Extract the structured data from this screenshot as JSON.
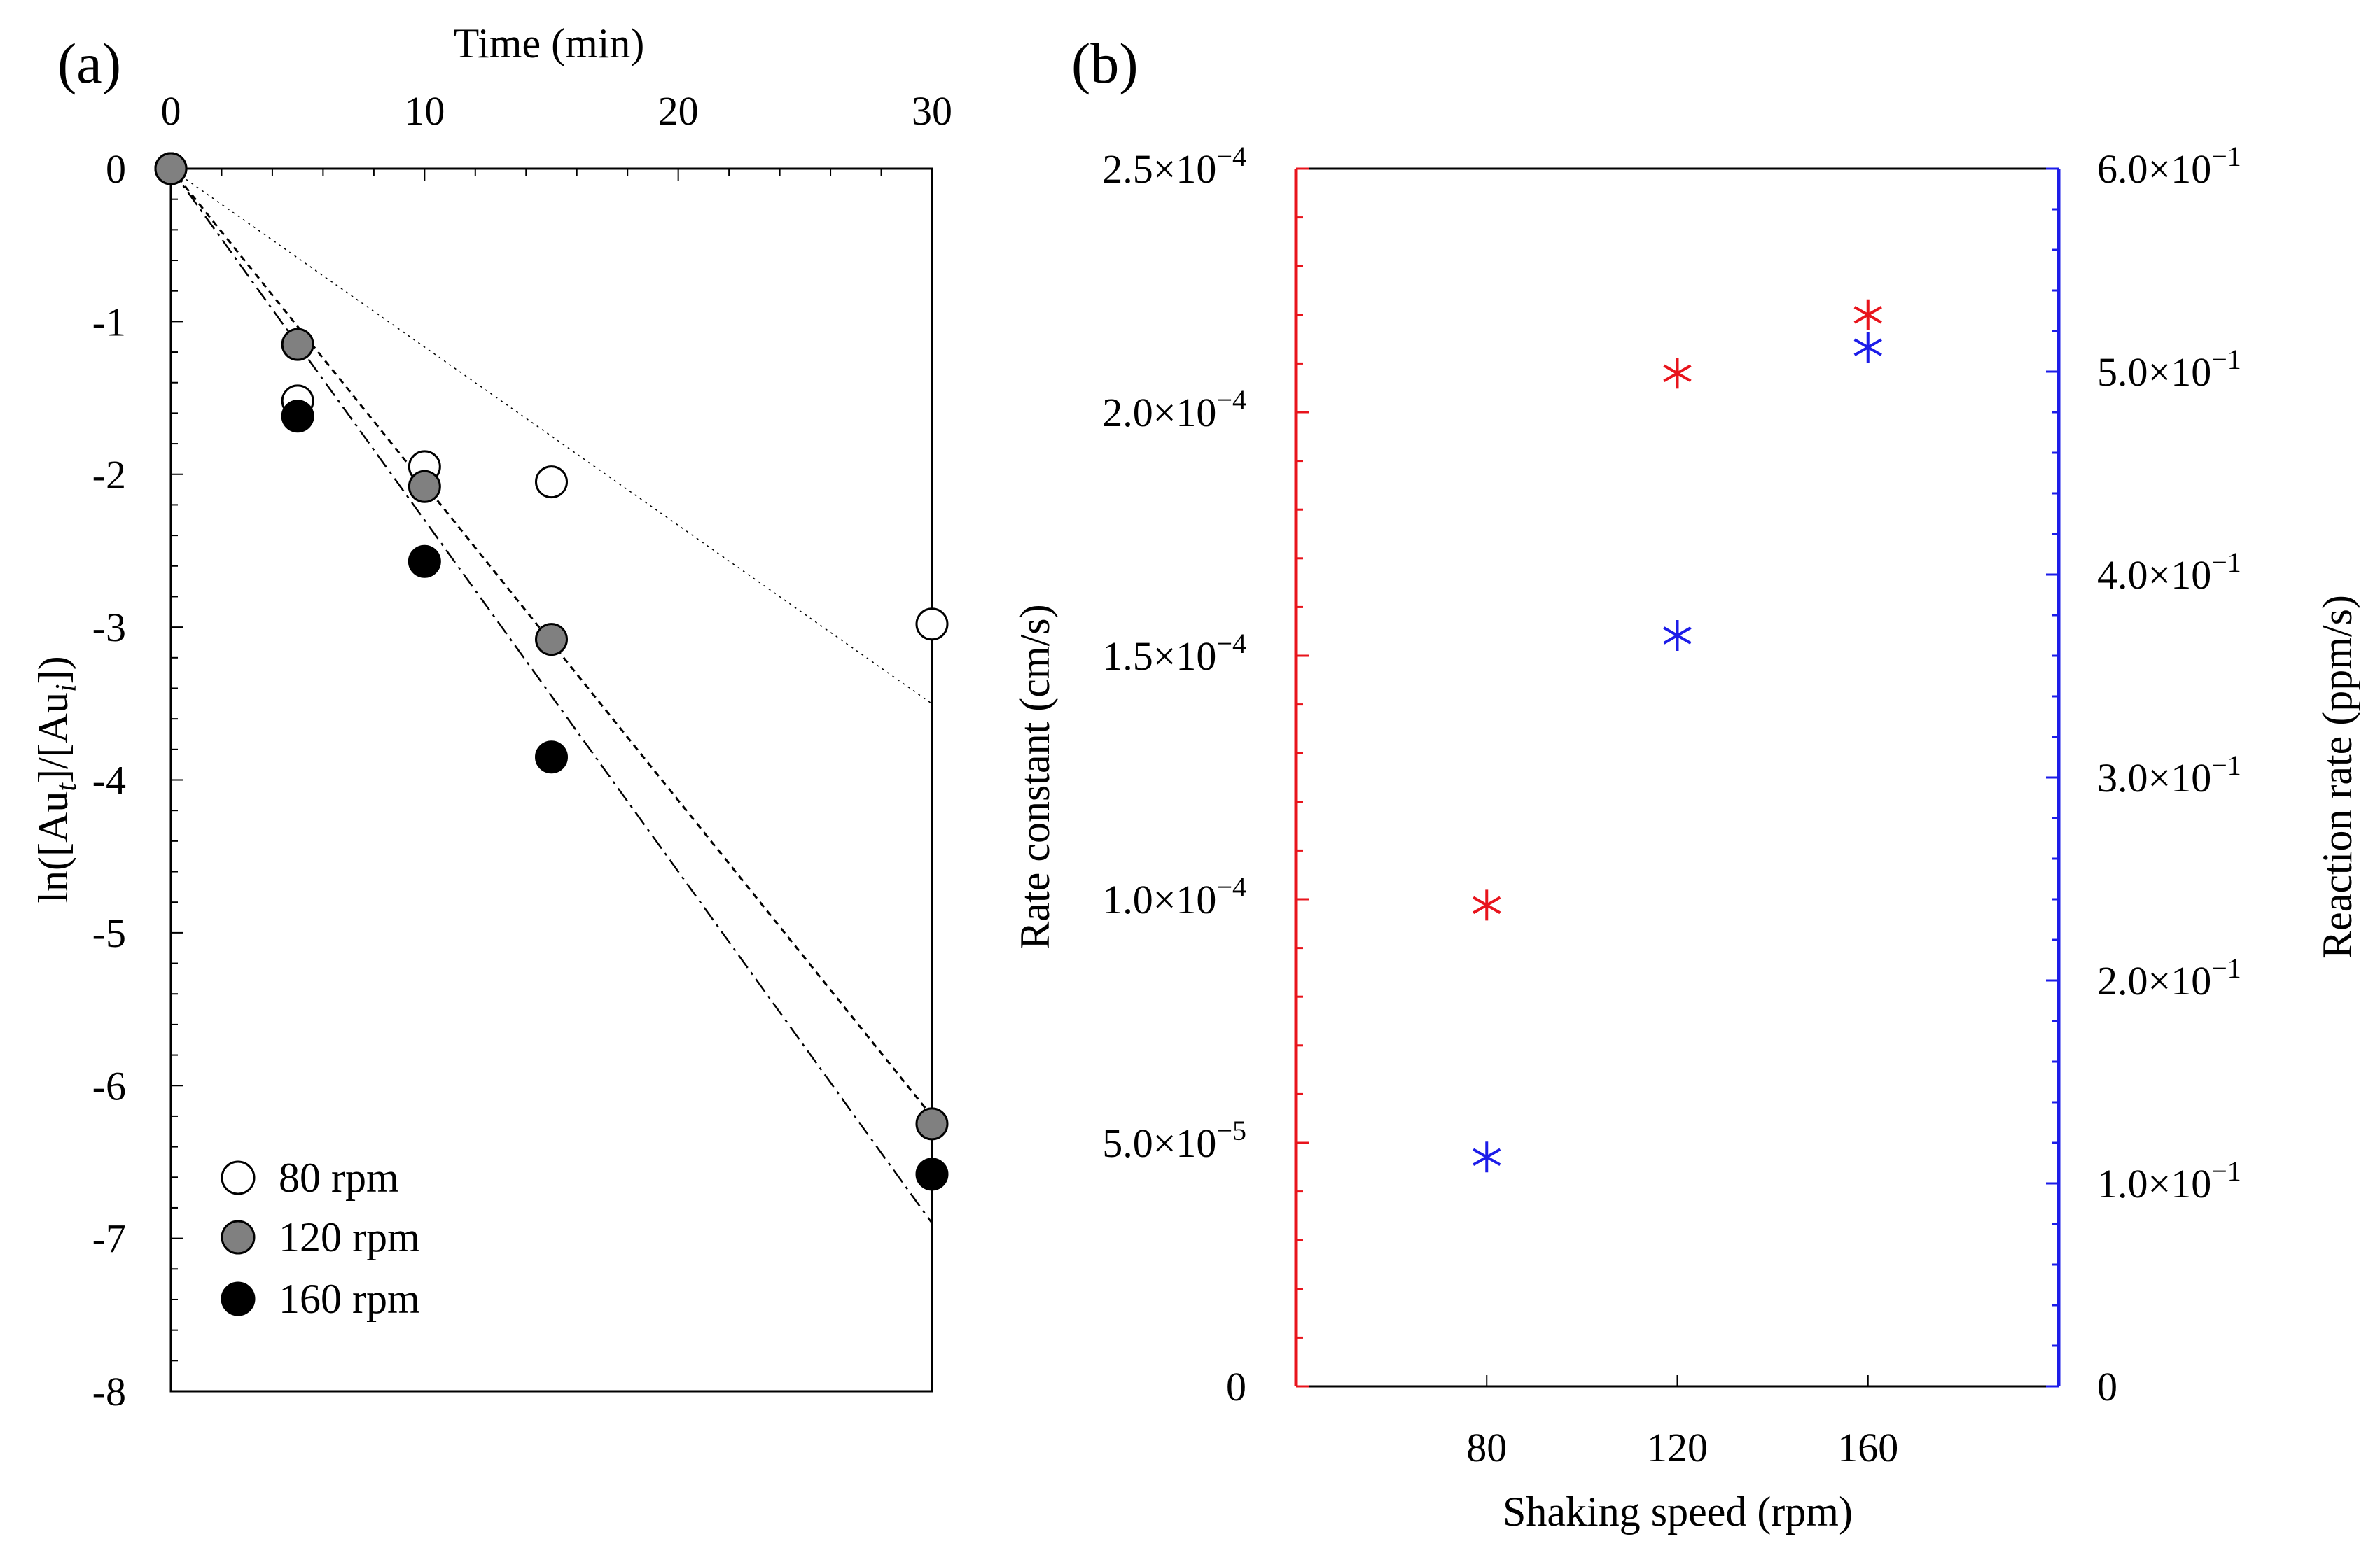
{
  "chart_data": [
    {
      "panel_label": "(a)",
      "type": "scatter",
      "xlabel": "Time (min)",
      "ylabel": "ln([Auₜ]/[Auᵢ])",
      "ylabel_parts": [
        "ln([Au",
        "t",
        "]/[Au",
        "i",
        "])"
      ],
      "xlim": [
        0,
        30
      ],
      "ylim": [
        -8,
        0
      ],
      "x_ticks": [
        0,
        10,
        20,
        30
      ],
      "y_ticks": [
        0,
        -1,
        -2,
        -3,
        -4,
        -5,
        -6,
        -7,
        -8
      ],
      "series": [
        {
          "name": "80 rpm",
          "marker": "circle-open",
          "fill": "#ffffff",
          "x": [
            0,
            5,
            10,
            15,
            30
          ],
          "y": [
            0,
            -1.52,
            -1.95,
            -2.05,
            -2.98
          ],
          "fit_slope": -0.1167,
          "fit_style": "dotted"
        },
        {
          "name": "120 rpm",
          "marker": "circle-gray",
          "fill": "#808080",
          "x": [
            0,
            5,
            10,
            15,
            30
          ],
          "y": [
            0,
            -1.15,
            -2.08,
            -3.08,
            -6.25
          ],
          "fit_slope": -0.2067,
          "fit_style": "dashed"
        },
        {
          "name": "160 rpm",
          "marker": "circle-filled",
          "fill": "#000000",
          "x": [
            0,
            5,
            10,
            15,
            30
          ],
          "y": [
            0,
            -1.62,
            -2.57,
            -3.85,
            -6.58
          ],
          "fit_slope": -0.23,
          "fit_style": "dash-dot"
        }
      ],
      "legend": [
        "80 rpm",
        "120 rpm",
        "160 rpm"
      ],
      "legend_position": "bottom-left"
    },
    {
      "panel_label": "(b)",
      "type": "scatter",
      "xlabel": "Shaking speed (rpm)",
      "categories": [
        "80",
        "120",
        "160"
      ],
      "x": [
        80,
        120,
        160
      ],
      "xlim": [
        40,
        200
      ],
      "left_axis": {
        "label": "Rate constant (cm/s)",
        "color": "#e8141c",
        "ylim": [
          0,
          0.00025
        ],
        "ticks": [
          0,
          5e-05,
          0.0001,
          0.00015,
          0.0002,
          0.00025
        ],
        "tick_labels": [
          {
            "mantissa": "0",
            "exponent": ""
          },
          {
            "mantissa": "5.0",
            "exponent": "−5"
          },
          {
            "mantissa": "1.0",
            "exponent": "−4"
          },
          {
            "mantissa": "1.5",
            "exponent": "−4"
          },
          {
            "mantissa": "2.0",
            "exponent": "−4"
          },
          {
            "mantissa": "2.5",
            "exponent": "−4"
          }
        ]
      },
      "right_axis": {
        "label": "Reaction rate (ppm/s)",
        "color": "#1c1ce8",
        "ylim": [
          0,
          0.6
        ],
        "ticks": [
          0,
          0.1,
          0.2,
          0.3,
          0.4,
          0.5,
          0.6
        ],
        "tick_labels": [
          {
            "mantissa": "0",
            "exponent": ""
          },
          {
            "mantissa": "1.0",
            "exponent": "−1"
          },
          {
            "mantissa": "2.0",
            "exponent": "−1"
          },
          {
            "mantissa": "3.0",
            "exponent": "−1"
          },
          {
            "mantissa": "4.0",
            "exponent": "−1"
          },
          {
            "mantissa": "5.0",
            "exponent": "−1"
          },
          {
            "mantissa": "6.0",
            "exponent": "−1"
          }
        ]
      },
      "series": [
        {
          "name": "Rate constant",
          "axis": "left",
          "color": "#e8141c",
          "marker": "asterisk",
          "values": [
            9.88e-05,
            0.000208,
            0.00022
          ]
        },
        {
          "name": "Reaction rate",
          "axis": "right",
          "color": "#1c1ce8",
          "marker": "asterisk",
          "values": [
            0.113,
            0.37,
            0.512
          ]
        }
      ]
    }
  ]
}
